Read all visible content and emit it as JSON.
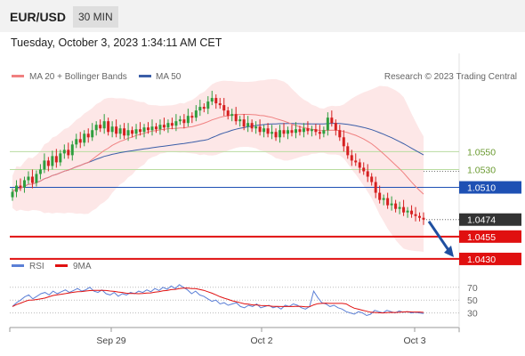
{
  "header": {
    "pair": "EUR/USD",
    "timeframe": "30 MIN"
  },
  "datetime": "Tuesday, October 3, 2023 1:34:11 AM CET",
  "legend": {
    "ma20": "MA 20 + Bollinger Bands",
    "ma50": "MA 50",
    "credit": "Research © 2023 Trading Central",
    "rsi": "RSI",
    "ma9": "9MA"
  },
  "colors": {
    "ma20": "#f08080",
    "ma50": "#3b5ea8",
    "bollinger": "#fde3e3",
    "up_candle": "#2e9e3e",
    "down_candle": "#d62020",
    "resistance": "#b8dca0",
    "pivot": "#1e50b4",
    "support": "#e01010",
    "last": "#333333",
    "rsi": "#5b7fd6",
    "rsi_ma": "#e01010"
  },
  "chart_data": [
    {
      "type": "candlestick",
      "x_ticks": [
        "Sep 29",
        "Oct 2",
        "Oct 3"
      ],
      "ylim": [
        1.0416,
        1.0625
      ],
      "levels": [
        {
          "label": "1.0550",
          "value": 1.055,
          "kind": "resistance"
        },
        {
          "label": "1.0530",
          "value": 1.053,
          "kind": "resistance"
        },
        {
          "label": "1.0510",
          "value": 1.051,
          "kind": "pivot"
        },
        {
          "label": "1.0474",
          "value": 1.0474,
          "kind": "last"
        },
        {
          "label": "1.0455",
          "value": 1.0455,
          "kind": "support"
        },
        {
          "label": "1.0430",
          "value": 1.043,
          "kind": "support"
        }
      ],
      "close_series": [
        1.0505,
        1.0512,
        1.051,
        1.0518,
        1.0522,
        1.0515,
        1.0525,
        1.053,
        1.054,
        1.0534,
        1.0545,
        1.0538,
        1.0548,
        1.0552,
        1.0546,
        1.0558,
        1.0564,
        1.056,
        1.057,
        1.0566,
        1.0574,
        1.058,
        1.0576,
        1.0584,
        1.0572,
        1.0578,
        1.057,
        1.0576,
        1.0568,
        1.0574,
        1.057,
        1.0575,
        1.0572,
        1.0577,
        1.0574,
        1.0578,
        1.0575,
        1.058,
        1.0577,
        1.0582,
        1.0579,
        1.0584,
        1.0586,
        1.0582,
        1.059,
        1.0588,
        1.0596,
        1.06,
        1.0598,
        1.0606,
        1.061,
        1.0604,
        1.0602,
        1.0596,
        1.059,
        1.0592,
        1.0584,
        1.0586,
        1.0578,
        1.0582,
        1.0576,
        1.0578,
        1.0572,
        1.0576,
        1.057,
        1.0572,
        1.0566,
        1.0574,
        1.057,
        1.0574,
        1.0571,
        1.0575,
        1.0572,
        1.0576,
        1.0573,
        1.0575,
        1.0572,
        1.057,
        1.0574,
        1.0588,
        1.0582,
        1.0574,
        1.0566,
        1.0556,
        1.0546,
        1.054,
        1.0538,
        1.0532,
        1.0528,
        1.0522,
        1.0516,
        1.0504,
        1.0496,
        1.0498,
        1.049,
        1.0492,
        1.0486,
        1.0488,
        1.0482,
        1.0484,
        1.048,
        1.0478,
        1.0476,
        1.0474
      ],
      "pre_mark": {
        "label": "1.0510",
        "value": 1.051
      },
      "forecast": {
        "from": 1.0474,
        "to": 1.043
      }
    },
    {
      "type": "line",
      "name": "RSI",
      "y_ticks": [
        70,
        50,
        30
      ],
      "ylim": [
        10,
        85
      ],
      "rsi": [
        40,
        46,
        50,
        55,
        58,
        52,
        56,
        60,
        62,
        58,
        64,
        60,
        63,
        66,
        62,
        65,
        68,
        64,
        66,
        70,
        64,
        62,
        66,
        60,
        58,
        62,
        56,
        60,
        58,
        62,
        60,
        64,
        62,
        66,
        63,
        68,
        65,
        70,
        67,
        72,
        68,
        74,
        70,
        66,
        60,
        64,
        58,
        56,
        52,
        48,
        50,
        44,
        46,
        42,
        44,
        46,
        40,
        38,
        42,
        40,
        44,
        38,
        40,
        42,
        38,
        40,
        36,
        42,
        40,
        44,
        42,
        38,
        36,
        40,
        64,
        54,
        46,
        44,
        40,
        42,
        38,
        36,
        32,
        30,
        28,
        32,
        30,
        26,
        28,
        34,
        32,
        30,
        34,
        32,
        30,
        33,
        31,
        32,
        30,
        31,
        30,
        29
      ]
    }
  ]
}
